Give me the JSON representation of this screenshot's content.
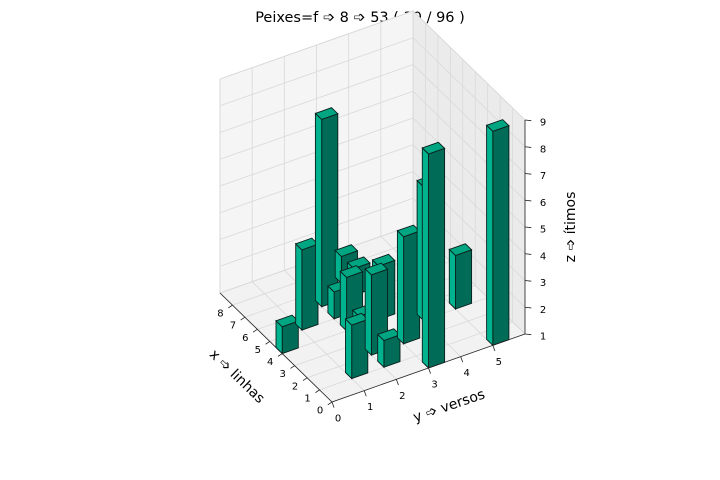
{
  "chart_data": {
    "type": "bar3d",
    "title": "Peixes=f ➩ 8 ➩ 53 ( 30 / 96 )",
    "xlabel": "x ➩ linhas",
    "ylabel": "y ➩ versos",
    "zlabel": "z ➩ ítimos",
    "x_ticks": [
      "0",
      "1",
      "2",
      "3",
      "4",
      "5",
      "6",
      "7",
      "8"
    ],
    "y_ticks": [
      "0",
      "1",
      "2",
      "3",
      "4",
      "5"
    ],
    "z_ticks": [
      "1",
      "2",
      "3",
      "4",
      "5",
      "6",
      "7",
      "8",
      "9"
    ],
    "xlim": [
      0,
      9
    ],
    "ylim": [
      0,
      6
    ],
    "zlim": [
      1,
      9
    ],
    "grid": true,
    "bar_color": "#00b38f",
    "bars": [
      {
        "x": 0,
        "y": 3,
        "z": 9
      },
      {
        "x": 0,
        "y": 5,
        "z": 9
      },
      {
        "x": 1,
        "y": 1,
        "z": 3
      },
      {
        "x": 1,
        "y": 2,
        "z": 2
      },
      {
        "x": 2,
        "y": 2,
        "z": 4
      },
      {
        "x": 2,
        "y": 3,
        "z": 5
      },
      {
        "x": 3,
        "y": 2,
        "z": 2
      },
      {
        "x": 3,
        "y": 4,
        "z": 6
      },
      {
        "x": 3,
        "y": 5,
        "z": 3
      },
      {
        "x": 4,
        "y": 0,
        "z": 2
      },
      {
        "x": 4,
        "y": 2,
        "z": 3
      },
      {
        "x": 4,
        "y": 3,
        "z": 3
      },
      {
        "x": 5,
        "y": 1,
        "z": 4
      },
      {
        "x": 5,
        "y": 2,
        "z": 2
      },
      {
        "x": 6,
        "y": 2,
        "z": 8
      },
      {
        "x": 6,
        "y": 3,
        "z": 2
      },
      {
        "x": 7,
        "y": 3,
        "z": 2
      }
    ]
  }
}
